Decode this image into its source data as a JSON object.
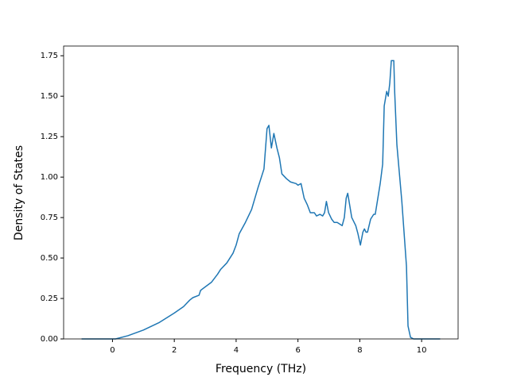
{
  "chart_data": {
    "type": "line",
    "x_label": "Frequency (THz)",
    "y_label": "Density of States",
    "series": [
      {
        "color": "#1f77b4",
        "x": [
          -1,
          0,
          0.1,
          0.5,
          1,
          1.5,
          2,
          2.3,
          2.5,
          2.6,
          2.8,
          2.85,
          3.2,
          3.4,
          3.5,
          3.7,
          3.9,
          4.0,
          4.1,
          4.3,
          4.5,
          4.7,
          4.9,
          5.0,
          5.06,
          5.14,
          5.22,
          5.32,
          5.4,
          5.48,
          5.63,
          5.76,
          5.94,
          6.0,
          6.1,
          6.2,
          6.3,
          6.4,
          6.53,
          6.6,
          6.71,
          6.8,
          6.86,
          6.92,
          6.99,
          7.09,
          7.17,
          7.27,
          7.43,
          7.5,
          7.56,
          7.61,
          7.74,
          7.87,
          7.94,
          8.02,
          8.1,
          8.15,
          8.2,
          8.25,
          8.35,
          8.45,
          8.5,
          8.66,
          8.74,
          8.79,
          8.87,
          8.92,
          8.97,
          9.02,
          9.1,
          9.13,
          9.2,
          9.36,
          9.51,
          9.56,
          9.64,
          9.74,
          10.6
        ],
        "values": [
          0,
          0,
          0,
          0.02,
          0.055,
          0.1,
          0.16,
          0.2,
          0.24,
          0.255,
          0.27,
          0.3,
          0.35,
          0.4,
          0.43,
          0.47,
          0.53,
          0.58,
          0.65,
          0.72,
          0.8,
          0.93,
          1.05,
          1.3,
          1.32,
          1.18,
          1.27,
          1.18,
          1.12,
          1.02,
          0.99,
          0.97,
          0.96,
          0.95,
          0.96,
          0.87,
          0.83,
          0.78,
          0.78,
          0.76,
          0.77,
          0.76,
          0.78,
          0.85,
          0.78,
          0.74,
          0.72,
          0.72,
          0.7,
          0.75,
          0.87,
          0.9,
          0.75,
          0.7,
          0.65,
          0.58,
          0.66,
          0.68,
          0.66,
          0.66,
          0.74,
          0.77,
          0.77,
          0.96,
          1.08,
          1.44,
          1.53,
          1.5,
          1.58,
          1.72,
          1.72,
          1.52,
          1.2,
          0.85,
          0.45,
          0.08,
          0.01,
          0,
          0
        ]
      }
    ],
    "xlim": [
      -1.58,
      11.18
    ],
    "ylim": [
      0,
      1.81
    ],
    "xticks": [
      0,
      2,
      4,
      6,
      8,
      10
    ],
    "yticks": [
      {
        "value": 0,
        "label": "0.00"
      },
      {
        "value": 0.25,
        "label": "0.25"
      },
      {
        "value": 0.5,
        "label": "0.50"
      },
      {
        "value": 0.75,
        "label": "0.75"
      },
      {
        "value": 1,
        "label": "1.00"
      },
      {
        "value": 1.25,
        "label": "1.25"
      },
      {
        "value": 1.5,
        "label": "1.50"
      },
      {
        "value": 1.75,
        "label": "1.75"
      }
    ]
  }
}
